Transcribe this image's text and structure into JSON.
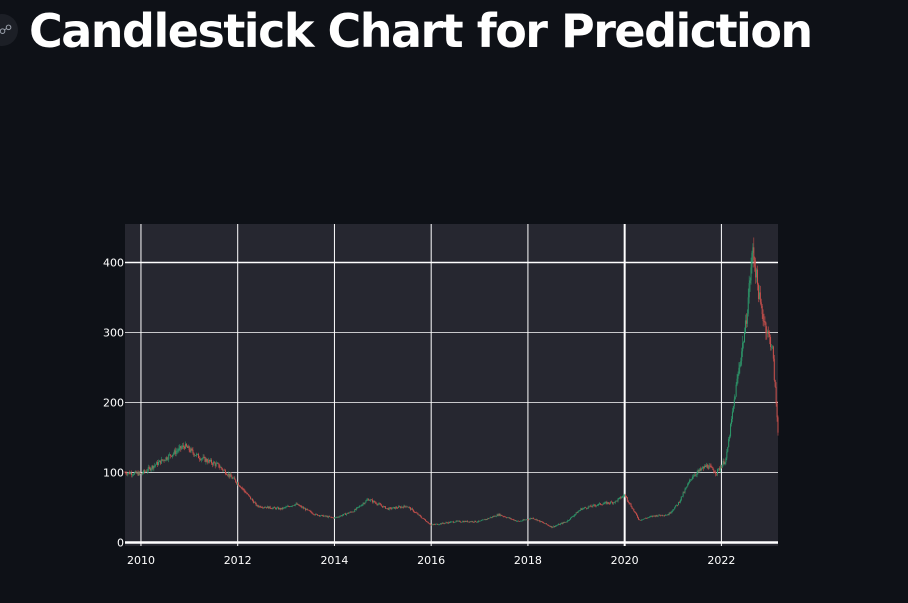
{
  "header": {
    "title": "Candlestick Chart for Prediction",
    "anchor_icon": "link-icon"
  },
  "colors": {
    "background": "#0e1117",
    "plot_background": "#262730",
    "grid": "#ffffff",
    "increasing": "#2e9e6e",
    "decreasing": "#d2524e"
  },
  "chart_data": {
    "type": "candlestick",
    "title": "",
    "xlabel": "",
    "ylabel": "",
    "x_ticks": [
      "2010",
      "2012",
      "2014",
      "2016",
      "2018",
      "2020",
      "2022"
    ],
    "y_ticks": [
      "0",
      "100",
      "200",
      "300",
      "400"
    ],
    "xlim": [
      2009.67,
      2023.17
    ],
    "ylim": [
      -5,
      455
    ],
    "grid": true,
    "legend": "none",
    "anchor_series": {
      "x": [
        2009.67,
        2010.0,
        2010.5,
        2010.9,
        2011.2,
        2011.6,
        2012.0,
        2012.4,
        2012.9,
        2013.2,
        2013.6,
        2014.0,
        2014.4,
        2014.7,
        2015.1,
        2015.5,
        2016.0,
        2016.5,
        2017.0,
        2017.4,
        2017.8,
        2018.1,
        2018.5,
        2018.8,
        2019.1,
        2019.5,
        2019.8,
        2020.0,
        2020.3,
        2020.6,
        2020.9,
        2021.1,
        2021.4,
        2021.7,
        2021.9,
        2022.1,
        2022.3,
        2022.5,
        2022.65,
        2022.8,
        2022.95,
        2023.05,
        2023.17
      ],
      "close": [
        100,
        98,
        120,
        138,
        122,
        110,
        85,
        52,
        48,
        55,
        40,
        35,
        45,
        62,
        48,
        52,
        25,
        30,
        30,
        40,
        30,
        35,
        22,
        30,
        48,
        55,
        58,
        68,
        32,
        38,
        40,
        55,
        95,
        110,
        100,
        120,
        220,
        310,
        420,
        340,
        300,
        280,
        160
      ]
    }
  }
}
